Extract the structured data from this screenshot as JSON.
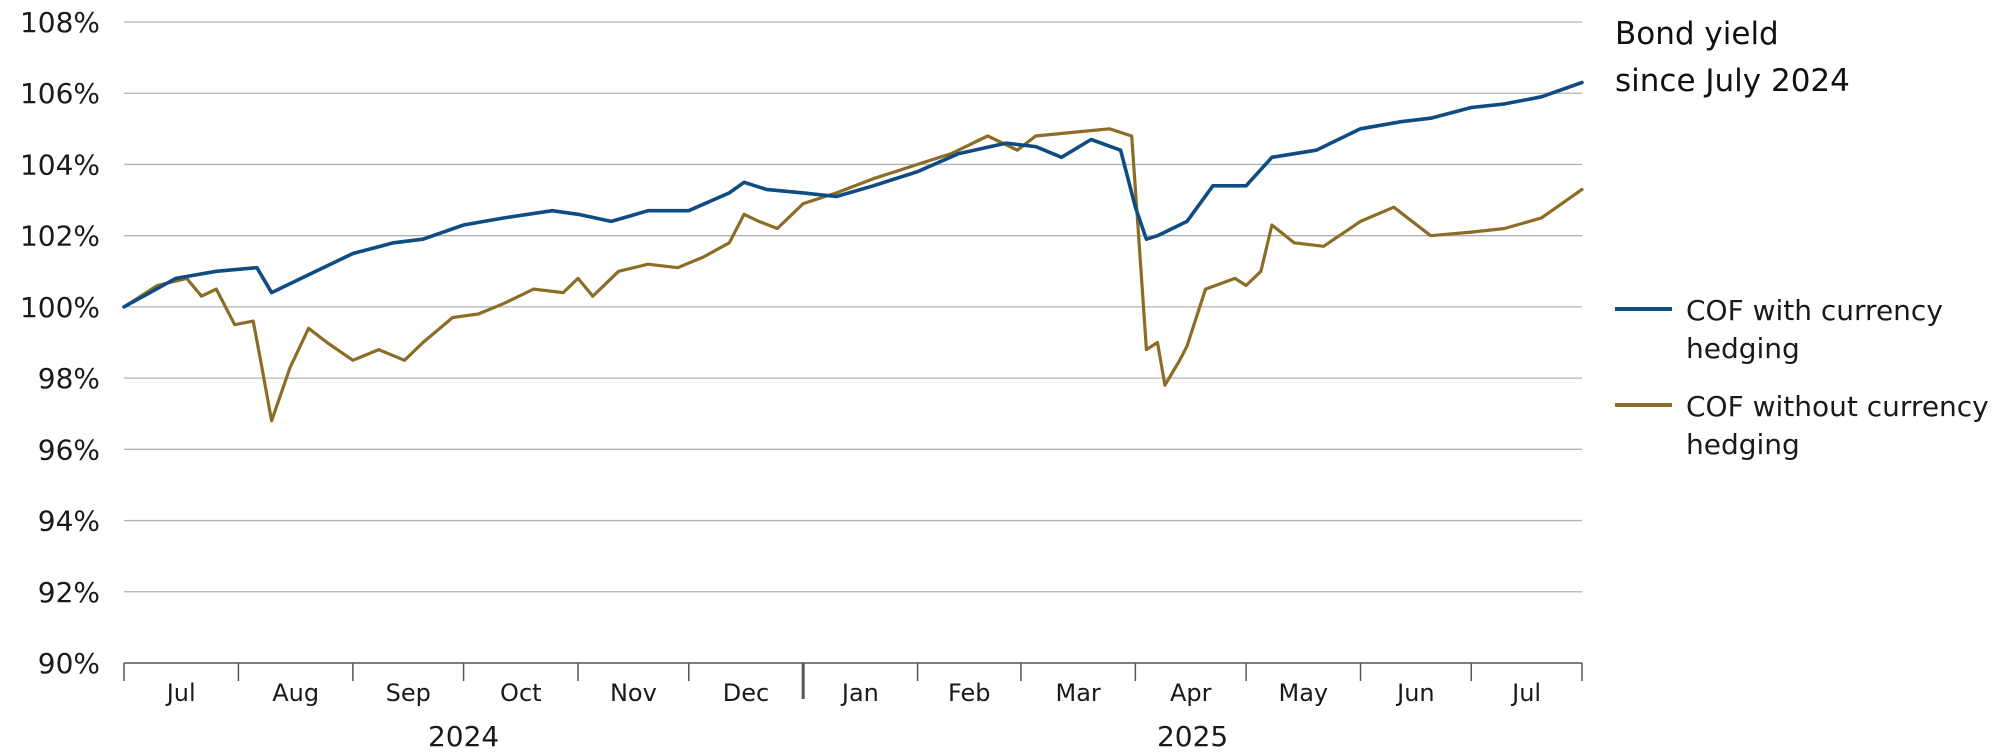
{
  "chart_data": {
    "type": "line",
    "title_lines": [
      "Bond yield",
      "since July 2024"
    ],
    "y_tick_labels": [
      "90%",
      "92%",
      "94%",
      "96%",
      "98%",
      "100%",
      "102%",
      "104%",
      "106%",
      "108%"
    ],
    "ylim": [
      90,
      108
    ],
    "grid": true,
    "legend_position": "right",
    "x_month_labels": [
      "Jul",
      "Aug",
      "Sep",
      "Oct",
      "Nov",
      "Dec",
      "Jan",
      "Feb",
      "Mar",
      "Apr",
      "May",
      "Jun",
      "Jul"
    ],
    "x_year_labels": [
      "2024",
      "2025"
    ],
    "colors": {
      "hedged": "#0f4c81",
      "unhedged": "#8b6d26",
      "grid": "#b3b3b3",
      "axis": "#555555"
    },
    "series": [
      {
        "name": "COF with currency hedging",
        "name_lines": [
          "COF with currency",
          "hedging"
        ],
        "color": "#0f4c81",
        "x": [
          "2024-07-01",
          "2024-07-15",
          "2024-07-26",
          "2024-08-06",
          "2024-08-10",
          "2024-08-20",
          "2024-09-01",
          "2024-09-12",
          "2024-09-20",
          "2024-10-01",
          "2024-10-12",
          "2024-10-25",
          "2024-11-01",
          "2024-11-10",
          "2024-11-20",
          "2024-12-01",
          "2024-12-12",
          "2024-12-16",
          "2024-12-22",
          "2025-01-01",
          "2025-01-10",
          "2025-01-20",
          "2025-02-01",
          "2025-02-12",
          "2025-02-25",
          "2025-03-05",
          "2025-03-12",
          "2025-03-20",
          "2025-03-28",
          "2025-04-01",
          "2025-04-04",
          "2025-04-07",
          "2025-04-09",
          "2025-04-15",
          "2025-04-22",
          "2025-05-01",
          "2025-05-08",
          "2025-05-20",
          "2025-06-01",
          "2025-06-12",
          "2025-06-20",
          "2025-07-01",
          "2025-07-10",
          "2025-07-20",
          "2025-07-31"
        ],
        "y": [
          100.0,
          100.8,
          101.0,
          101.1,
          100.4,
          100.9,
          101.5,
          101.8,
          101.9,
          102.3,
          102.5,
          102.7,
          102.6,
          102.4,
          102.7,
          102.7,
          103.2,
          103.5,
          103.3,
          103.2,
          103.1,
          103.4,
          103.8,
          104.3,
          104.6,
          104.5,
          104.2,
          104.7,
          104.4,
          102.8,
          101.9,
          102.0,
          102.1,
          102.4,
          103.4,
          103.4,
          104.2,
          104.4,
          105.0,
          105.2,
          105.3,
          105.6,
          105.7,
          105.9,
          106.3
        ]
      },
      {
        "name": "COF without currency hedging",
        "name_lines": [
          "COF without currency",
          "hedging"
        ],
        "color": "#8b6d26",
        "x": [
          "2024-07-01",
          "2024-07-10",
          "2024-07-18",
          "2024-07-22",
          "2024-07-26",
          "2024-07-31",
          "2024-08-05",
          "2024-08-07",
          "2024-08-10",
          "2024-08-15",
          "2024-08-20",
          "2024-08-25",
          "2024-09-01",
          "2024-09-08",
          "2024-09-15",
          "2024-09-20",
          "2024-09-28",
          "2024-10-05",
          "2024-10-12",
          "2024-10-20",
          "2024-10-28",
          "2024-11-01",
          "2024-11-05",
          "2024-11-12",
          "2024-11-20",
          "2024-11-28",
          "2024-12-05",
          "2024-12-12",
          "2024-12-16",
          "2024-12-20",
          "2024-12-25",
          "2025-01-01",
          "2025-01-10",
          "2025-01-20",
          "2025-02-01",
          "2025-02-10",
          "2025-02-20",
          "2025-02-28",
          "2025-03-05",
          "2025-03-15",
          "2025-03-25",
          "2025-03-31",
          "2025-04-02",
          "2025-04-04",
          "2025-04-07",
          "2025-04-09",
          "2025-04-13",
          "2025-04-15",
          "2025-04-20",
          "2025-04-28",
          "2025-05-01",
          "2025-05-05",
          "2025-05-08",
          "2025-05-14",
          "2025-05-22",
          "2025-06-01",
          "2025-06-10",
          "2025-06-20",
          "2025-07-01",
          "2025-07-10",
          "2025-07-20",
          "2025-07-31"
        ],
        "y": [
          100.0,
          100.6,
          100.8,
          100.3,
          100.5,
          99.5,
          99.6,
          98.5,
          96.8,
          98.3,
          99.4,
          99.0,
          98.5,
          98.8,
          98.5,
          99.0,
          99.7,
          99.8,
          100.1,
          100.5,
          100.4,
          100.8,
          100.3,
          101.0,
          101.2,
          101.1,
          101.4,
          101.8,
          102.6,
          102.4,
          102.2,
          102.9,
          103.2,
          103.6,
          104.0,
          104.3,
          104.8,
          104.4,
          104.8,
          104.9,
          105.0,
          104.8,
          101.8,
          98.8,
          99.0,
          97.8,
          98.5,
          98.9,
          100.5,
          100.8,
          100.6,
          101.0,
          102.3,
          101.8,
          101.7,
          102.4,
          102.8,
          102.0,
          102.1,
          102.2,
          102.5,
          103.3
        ]
      }
    ]
  }
}
